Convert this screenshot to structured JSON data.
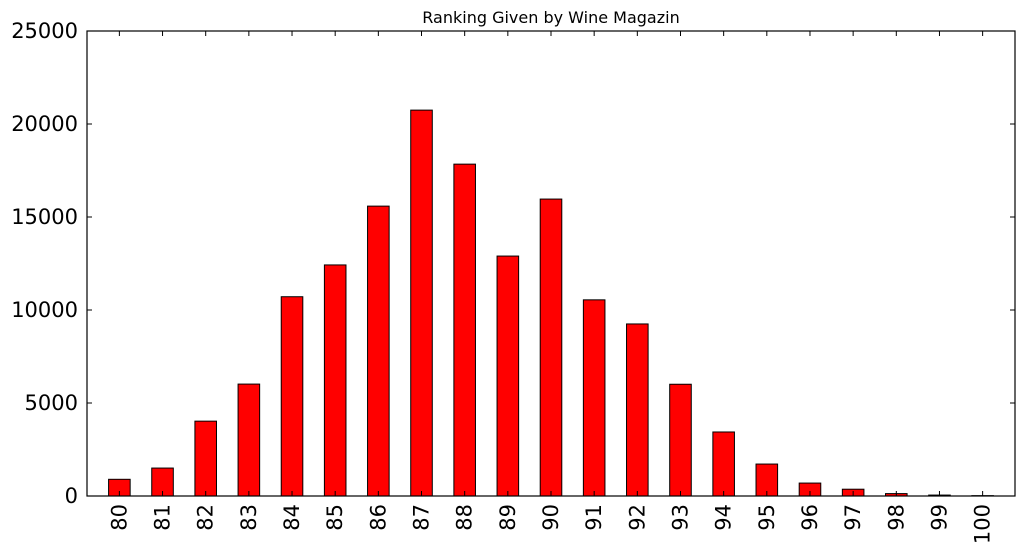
{
  "chart_data": {
    "type": "bar",
    "title": "Ranking Given by Wine Magazin",
    "xlabel": "",
    "ylabel": "",
    "categories": [
      "80",
      "81",
      "82",
      "83",
      "84",
      "85",
      "86",
      "87",
      "88",
      "89",
      "90",
      "91",
      "92",
      "93",
      "94",
      "95",
      "96",
      "97",
      "98",
      "99",
      "100"
    ],
    "values": [
      898,
      1502,
      4024,
      6017,
      10714,
      12423,
      15585,
      20746,
      17842,
      12900,
      15964,
      10546,
      9250,
      6008,
      3442,
      1718,
      695,
      365,
      129,
      50,
      19
    ],
    "ylim": [
      0,
      25000
    ],
    "yticks": [
      0,
      5000,
      10000,
      15000,
      20000,
      25000
    ],
    "grid": false,
    "legend": "none",
    "colors": {
      "bar_fill": "#ff0000",
      "bar_edge": "#000000",
      "axes": "#000000"
    }
  }
}
